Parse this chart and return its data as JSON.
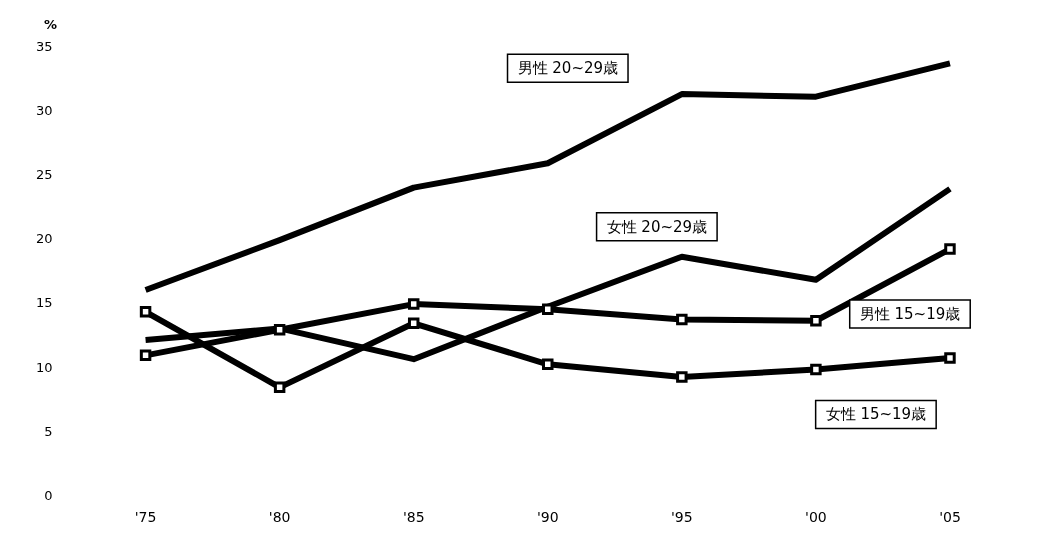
{
  "chart_data": {
    "type": "line",
    "ylabel": "%",
    "categories": [
      "'75",
      "'80",
      "'85",
      "'90",
      "'95",
      "'00",
      "'05"
    ],
    "ylim": [
      0,
      35
    ],
    "yticks": [
      0,
      5,
      10,
      15,
      20,
      25,
      30,
      35
    ],
    "grid": false,
    "legend": false,
    "line_style": "solid",
    "series": [
      {
        "name": "男性 20~29歳",
        "color": "#000000",
        "marker": "none",
        "values": [
          16.1,
          20.0,
          24.1,
          26.0,
          31.4,
          31.2,
          33.8
        ]
      },
      {
        "name": "女性 20~29歳",
        "color": "#000000",
        "marker": "none",
        "values": [
          12.2,
          13.1,
          10.7,
          14.8,
          18.7,
          16.9,
          24.0
        ]
      },
      {
        "name": "男性 15~19歳",
        "color": "#000000",
        "marker": "square",
        "values": [
          11.0,
          13.0,
          15.0,
          14.6,
          13.8,
          13.7,
          19.3
        ]
      },
      {
        "name": "女性 15~19歳",
        "color": "#000000",
        "marker": "square",
        "values": [
          14.4,
          8.5,
          13.5,
          10.3,
          9.3,
          9.9,
          10.8
        ]
      }
    ]
  }
}
